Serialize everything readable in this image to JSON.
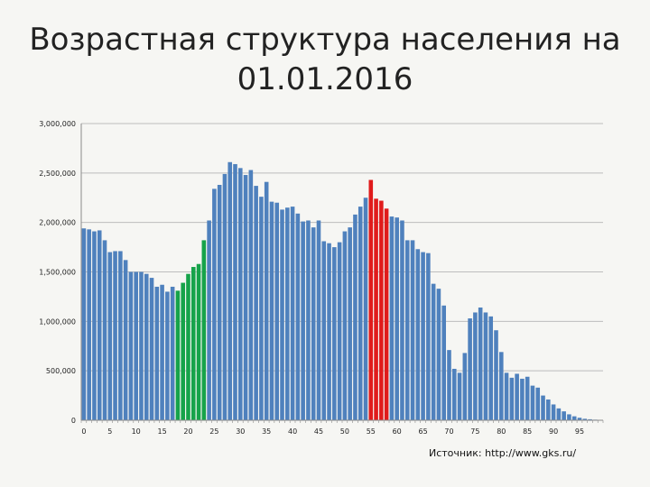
{
  "title_line1": "Возрастная структура населения на",
  "title_line2": "01.01.2016",
  "source_text": "Источник: http://www.gks.ru/",
  "colors": {
    "default": "#4f81bd",
    "highlight_green": "#16a34a",
    "highlight_red": "#e01b1b",
    "grid": "#bdbdbd",
    "background": "#f6f6f3"
  },
  "chart_data": {
    "type": "bar",
    "title": "Возрастная структура населения на 01.01.2016",
    "xlabel": "",
    "ylabel": "",
    "ylim": [
      0,
      3000000
    ],
    "yticks": [
      0,
      500000,
      1000000,
      1500000,
      2000000,
      2500000,
      3000000
    ],
    "ytick_labels": [
      "0",
      "500,000",
      "1,000,000",
      "1,500,000",
      "2,000,000",
      "2,500,000",
      "3,000,000"
    ],
    "xticks": [
      0,
      5,
      10,
      15,
      20,
      25,
      30,
      35,
      40,
      45,
      50,
      55,
      60,
      65,
      70,
      75,
      80,
      85,
      90,
      95
    ],
    "grid": true,
    "legend": "none",
    "categories": [
      0,
      1,
      2,
      3,
      4,
      5,
      6,
      7,
      8,
      9,
      10,
      11,
      12,
      13,
      14,
      15,
      16,
      17,
      18,
      19,
      20,
      21,
      22,
      23,
      24,
      25,
      26,
      27,
      28,
      29,
      30,
      31,
      32,
      33,
      34,
      35,
      36,
      37,
      38,
      39,
      40,
      41,
      42,
      43,
      44,
      45,
      46,
      47,
      48,
      49,
      50,
      51,
      52,
      53,
      54,
      55,
      56,
      57,
      58,
      59,
      60,
      61,
      62,
      63,
      64,
      65,
      66,
      67,
      68,
      69,
      70,
      71,
      72,
      73,
      74,
      75,
      76,
      77,
      78,
      79,
      80,
      81,
      82,
      83,
      84,
      85,
      86,
      87,
      88,
      89,
      90,
      91,
      92,
      93,
      94,
      95,
      96,
      97,
      98,
      99
    ],
    "values": [
      1940000,
      1930000,
      1910000,
      1920000,
      1820000,
      1700000,
      1710000,
      1710000,
      1620000,
      1500000,
      1500000,
      1500000,
      1480000,
      1440000,
      1350000,
      1370000,
      1300000,
      1350000,
      1310000,
      1390000,
      1480000,
      1550000,
      1580000,
      1820000,
      2020000,
      2340000,
      2380000,
      2490000,
      2610000,
      2590000,
      2550000,
      2480000,
      2530000,
      2370000,
      2260000,
      2410000,
      2210000,
      2200000,
      2130000,
      2150000,
      2160000,
      2090000,
      2010000,
      2020000,
      1950000,
      2020000,
      1810000,
      1790000,
      1750000,
      1800000,
      1910000,
      1950000,
      2080000,
      2160000,
      2250000,
      2430000,
      2240000,
      2220000,
      2140000,
      2060000,
      2050000,
      2020000,
      1820000,
      1820000,
      1730000,
      1700000,
      1690000,
      1380000,
      1330000,
      1160000,
      710000,
      520000,
      480000,
      680000,
      1030000,
      1090000,
      1140000,
      1090000,
      1050000,
      910000,
      690000,
      480000,
      430000,
      470000,
      420000,
      440000,
      350000,
      330000,
      250000,
      210000,
      160000,
      120000,
      90000,
      60000,
      40000,
      25000,
      15000,
      10000,
      6000,
      3000
    ],
    "highlight_green": [
      18,
      19,
      20,
      21,
      22,
      23
    ],
    "highlight_red": [
      55,
      56,
      57,
      58
    ]
  }
}
